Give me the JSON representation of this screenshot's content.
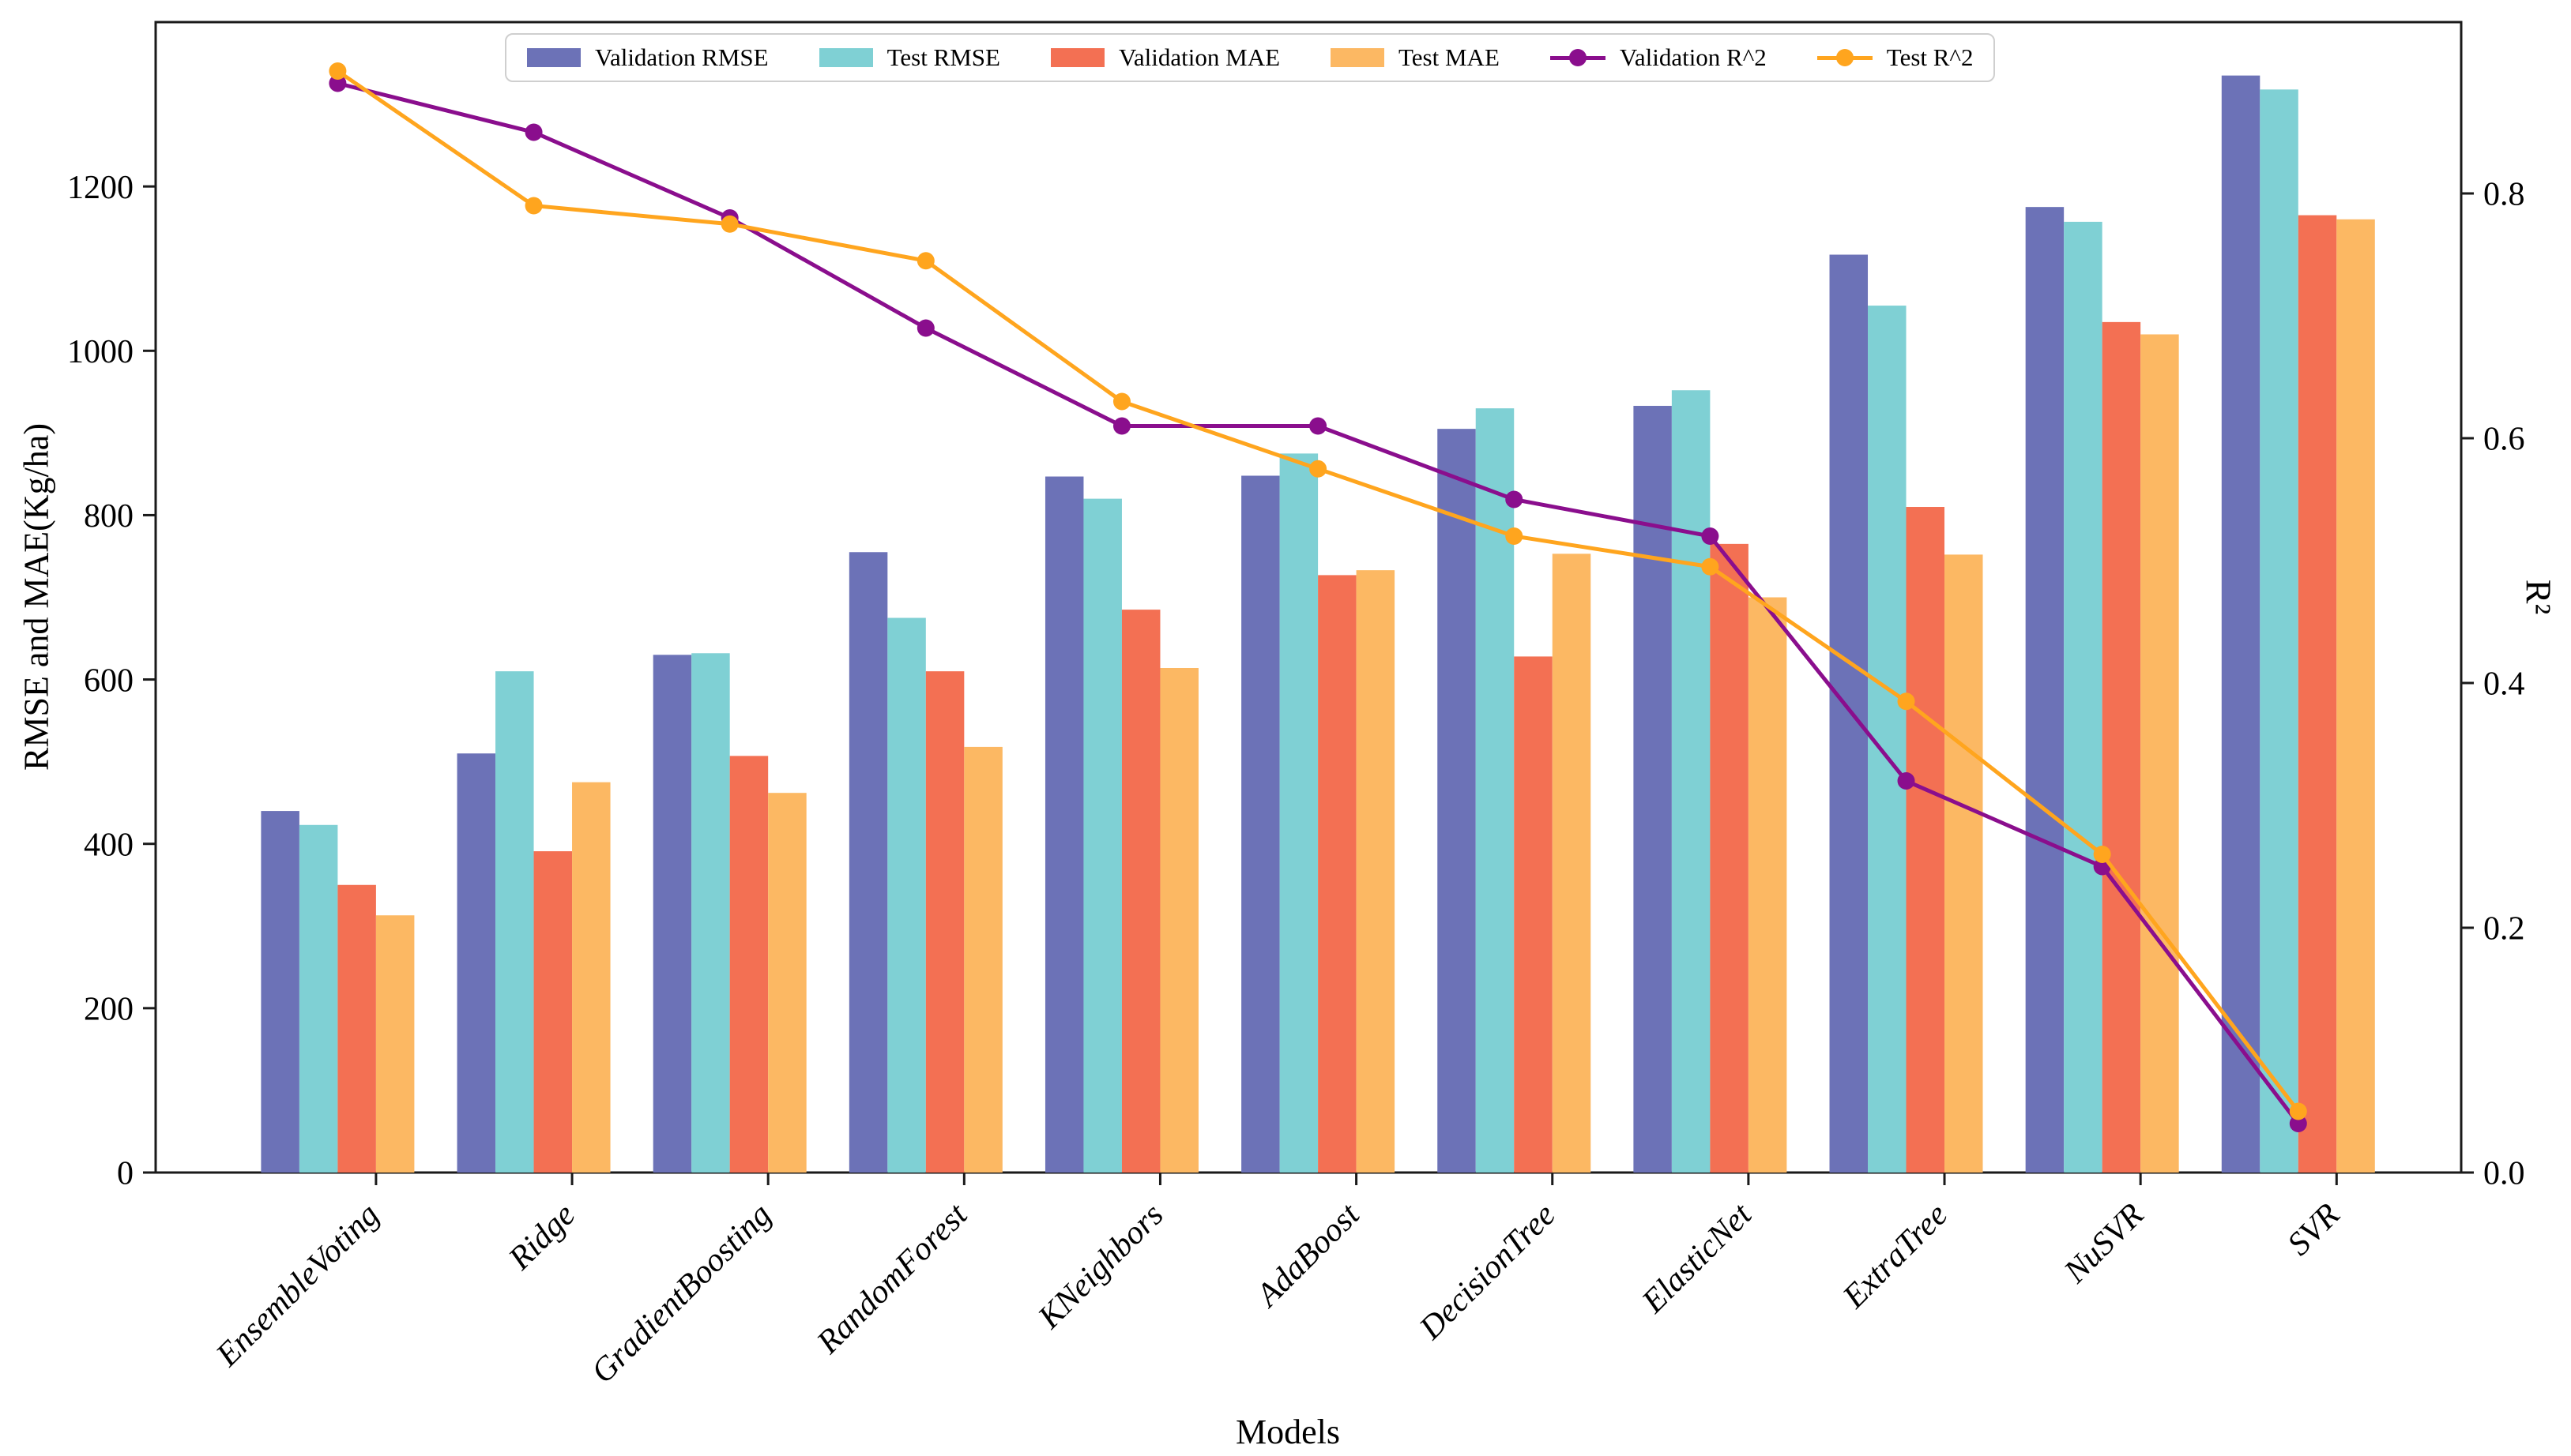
{
  "chart_data": {
    "type": "bar+line",
    "categories": [
      "EnsembleVoting",
      "Ridge",
      "GradientBoosting",
      "RandomForest",
      "KNeighbors",
      "AdaBoost",
      "DecisionTree",
      "ElasticNet",
      "ExtraTree",
      "NuSVR",
      "SVR"
    ],
    "bar_series": [
      {
        "name": "Validation RMSE",
        "color": "#6C72B7",
        "axis": "left",
        "values": [
          440,
          510,
          630,
          755,
          847,
          848,
          905,
          933,
          1117,
          1175,
          1335
        ]
      },
      {
        "name": "Test RMSE",
        "color": "#7FD0D4",
        "axis": "left",
        "values": [
          423,
          610,
          632,
          675,
          820,
          875,
          930,
          952,
          1055,
          1157,
          1318
        ]
      },
      {
        "name": "Validation MAE",
        "color": "#F37053",
        "axis": "left",
        "values": [
          350,
          391,
          507,
          610,
          685,
          727,
          628,
          765,
          810,
          1035,
          1165
        ]
      },
      {
        "name": "Test MAE",
        "color": "#FCB863",
        "axis": "left",
        "values": [
          313,
          475,
          462,
          518,
          614,
          733,
          753,
          700,
          752,
          1020,
          1160
        ]
      }
    ],
    "line_series": [
      {
        "name": "Validation R^2",
        "color": "#8A0E8D",
        "axis": "right",
        "values": [
          0.89,
          0.85,
          0.78,
          0.69,
          0.61,
          0.61,
          0.55,
          0.52,
          0.32,
          0.25,
          0.04
        ]
      },
      {
        "name": "Test R^2",
        "color": "#FFA51E",
        "axis": "right",
        "values": [
          0.9,
          0.79,
          0.775,
          0.745,
          0.63,
          0.575,
          0.52,
          0.495,
          0.385,
          0.26,
          0.05
        ]
      }
    ],
    "axes": {
      "left": {
        "label": "RMSE and MAE(Kg/ha)",
        "lim": [
          0,
          1400
        ],
        "ticks": [
          0,
          200,
          400,
          600,
          800,
          1000,
          1200
        ]
      },
      "right": {
        "label": "R²",
        "lim": [
          0,
          0.94
        ],
        "ticks": [
          0.0,
          0.2,
          0.4,
          0.6,
          0.8
        ]
      },
      "x": {
        "label": "Models"
      }
    },
    "legend_position": "upper center",
    "grid": false
  }
}
